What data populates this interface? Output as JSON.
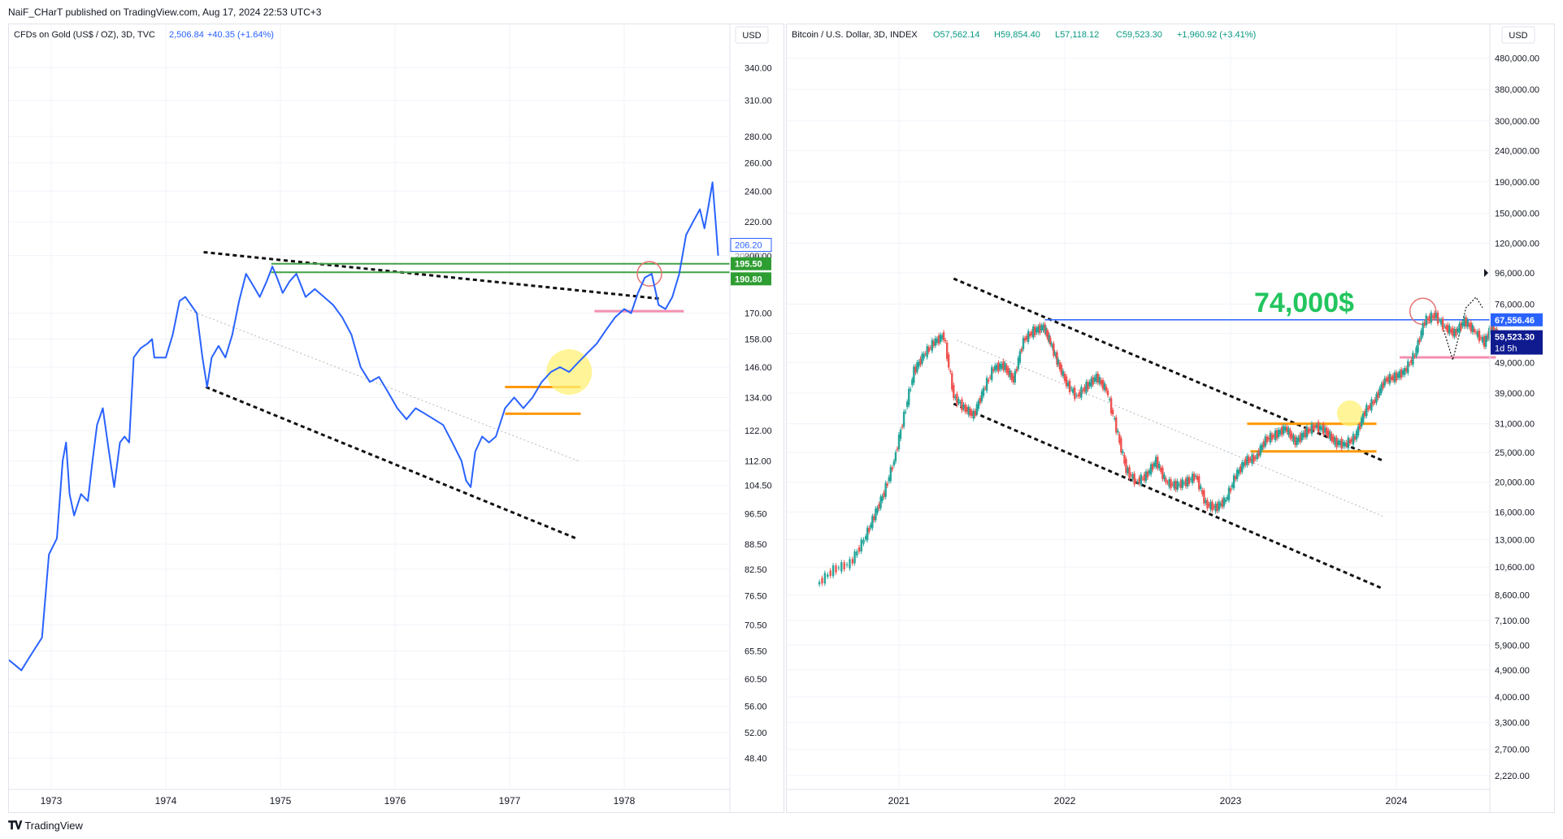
{
  "header": {
    "text": "NaiF_CHarT published on TradingView.com, Aug 17, 2024 22:53 UTC+3"
  },
  "footer": {
    "logo_icon": "tradingview-logo-icon",
    "text": "TradingView"
  },
  "colors": {
    "gold_line": "#2962ff",
    "green_level": "#43a047",
    "green_badge": "#2e9d32",
    "orange": "#ff9800",
    "pink": "#f48fb1",
    "yellow": "#fff176",
    "btc_up": "#26a69a",
    "btc_down": "#ef5350",
    "blue_level": "#2962ff",
    "btc_text_green": "#22c55e",
    "badge_blue": "#2962ff",
    "badge_navy": "#0f1b8f"
  },
  "chart_data": [
    {
      "type": "line",
      "title": "CFDs on Gold (US$ / OZ), 3D, TVC",
      "last_price": "2,506.84",
      "change": "+40.35 (+1.64%)",
      "currency": "USD",
      "scale": "log",
      "ylim": [
        45,
        380
      ],
      "x_ticks": [
        "1973",
        "1974",
        "1975",
        "1976",
        "1977",
        "1978"
      ],
      "y_ticks": [
        "340.00",
        "310.00",
        "280.00",
        "260.00",
        "240.00",
        "220.00",
        "200.00",
        "170.00",
        "158.00",
        "146.00",
        "134.00",
        "122.00",
        "112.00",
        "104.50",
        "96.50",
        "88.50",
        "82.50",
        "76.50",
        "70.50",
        "65.50",
        "60.50",
        "56.00",
        "52.00",
        "48.40"
      ],
      "x": [
        1972.58,
        1972.62,
        1972.68,
        1972.74,
        1972.8,
        1972.86,
        1972.92,
        1972.98,
        1973.05,
        1973.1,
        1973.13,
        1973.16,
        1973.2,
        1973.26,
        1973.32,
        1973.36,
        1973.4,
        1973.45,
        1973.5,
        1973.55,
        1973.6,
        1973.64,
        1973.68,
        1973.72,
        1973.78,
        1973.84,
        1973.88,
        1973.9,
        1973.94,
        1974.0,
        1974.06,
        1974.12,
        1974.17,
        1974.22,
        1974.27,
        1974.32,
        1974.36,
        1974.4,
        1974.46,
        1974.52,
        1974.58,
        1974.64,
        1974.7,
        1974.76,
        1974.82,
        1974.88,
        1974.93,
        1974.97,
        1975.02,
        1975.08,
        1975.14,
        1975.22,
        1975.3,
        1975.38,
        1975.46,
        1975.54,
        1975.62,
        1975.7,
        1975.78,
        1975.86,
        1975.94,
        1976.02,
        1976.1,
        1976.18,
        1976.26,
        1976.34,
        1976.42,
        1976.5,
        1976.58,
        1976.62,
        1976.66,
        1976.7,
        1976.76,
        1976.82,
        1976.88,
        1976.96,
        1977.04,
        1977.12,
        1977.2,
        1977.28,
        1977.36,
        1977.44,
        1977.52,
        1977.6,
        1977.68,
        1977.76,
        1977.84,
        1977.92,
        1978.0,
        1978.06,
        1978.12,
        1978.18,
        1978.24,
        1978.3,
        1978.36,
        1978.42,
        1978.48,
        1978.54,
        1978.6,
        1978.66,
        1978.7,
        1978.74,
        1978.77,
        1978.8,
        1978.82
      ],
      "y": [
        66,
        64,
        63,
        62,
        64,
        66,
        68,
        86,
        90,
        112,
        118,
        102,
        96,
        102,
        100,
        112,
        124,
        130,
        116,
        104,
        118,
        120,
        118,
        150,
        154,
        156,
        158,
        150,
        150,
        150,
        160,
        176,
        178,
        174,
        170,
        150,
        138,
        150,
        155,
        150,
        160,
        176,
        190,
        184,
        178,
        186,
        194,
        188,
        180,
        186,
        190,
        178,
        182,
        178,
        174,
        168,
        160,
        146,
        140,
        142,
        136,
        130,
        126,
        130,
        128,
        126,
        124,
        118,
        112,
        106,
        104,
        115,
        120,
        118,
        120,
        130,
        134,
        130,
        134,
        140,
        144,
        146,
        144,
        148,
        152,
        156,
        162,
        168,
        172,
        170,
        180,
        188,
        190,
        174,
        172,
        178,
        190,
        212,
        220,
        228,
        216,
        232,
        246,
        218,
        200
      ]
    },
    {
      "type": "candlestick",
      "title": "Bitcoin / U.S. Dollar, 3D, INDEX",
      "ohlc": {
        "o": "O57,562.14",
        "h": "H59,854.40",
        "l": "L57,118.12",
        "c": "C59,523.30",
        "change": "+1,960.92 (+3.41%)"
      },
      "currency": "USD",
      "scale": "log",
      "ylim": [
        2000,
        600000
      ],
      "annotation": "74,000$",
      "x_ticks": [
        "2021",
        "2022",
        "2023",
        "2024"
      ],
      "y_ticks": [
        "480,000.00",
        "380,000.00",
        "300,000.00",
        "240,000.00",
        "190,000.00",
        "150,000.00",
        "120,000.00",
        "96,000.00",
        "76,000.00",
        "61,000.00",
        "49,000.00",
        "39,000.00",
        "31,000.00",
        "25,000.00",
        "20,000.00",
        "16,000.00",
        "13,000.00",
        "10,600.00",
        "8,600.00",
        "7,100.00",
        "5,900.00",
        "4,900.00",
        "4,000.00",
        "3,300.00",
        "2,700.00",
        "2,220.00"
      ],
      "x": [
        2020.52,
        2020.62,
        2020.72,
        2020.8,
        2020.86,
        2020.92,
        2020.98,
        2021.04,
        2021.1,
        2021.16,
        2021.22,
        2021.28,
        2021.34,
        2021.4,
        2021.46,
        2021.52,
        2021.58,
        2021.64,
        2021.7,
        2021.76,
        2021.82,
        2021.88,
        2021.92,
        2021.96,
        2022.02,
        2022.08,
        2022.14,
        2022.2,
        2022.26,
        2022.32,
        2022.38,
        2022.44,
        2022.5,
        2022.56,
        2022.62,
        2022.68,
        2022.74,
        2022.8,
        2022.86,
        2022.92,
        2022.98,
        2023.04,
        2023.1,
        2023.16,
        2023.22,
        2023.28,
        2023.34,
        2023.4,
        2023.46,
        2023.52,
        2023.58,
        2023.64,
        2023.7,
        2023.76,
        2023.82,
        2023.88,
        2023.94,
        2024.0,
        2024.06,
        2024.12,
        2024.18,
        2024.24,
        2024.3,
        2024.36,
        2024.42,
        2024.48,
        2024.54,
        2024.58,
        2024.62
      ],
      "y": [
        9300,
        10400,
        10900,
        13000,
        15500,
        18500,
        23500,
        33000,
        46000,
        52000,
        57000,
        60000,
        38000,
        35000,
        33000,
        40000,
        47000,
        48000,
        43000,
        58000,
        62000,
        64000,
        57000,
        50000,
        42000,
        38000,
        41000,
        44000,
        40000,
        30000,
        22000,
        20000,
        21000,
        23500,
        20000,
        19500,
        20000,
        21000,
        17000,
        16500,
        17500,
        21000,
        23500,
        24000,
        27500,
        28500,
        30000,
        27000,
        29000,
        30500,
        29500,
        27000,
        26500,
        28000,
        34000,
        37000,
        43000,
        44000,
        46000,
        52000,
        67000,
        70000,
        64000,
        61000,
        67000,
        62000,
        57000,
        64000,
        59523
      ]
    }
  ],
  "gold_annotations": {
    "price_badges": [
      "206.20",
      "200.00",
      "195.50",
      "190.80"
    ]
  },
  "btc_annotations": {
    "price_badges": [
      "67,556.46",
      "59,523.30",
      "1d 5h"
    ]
  }
}
